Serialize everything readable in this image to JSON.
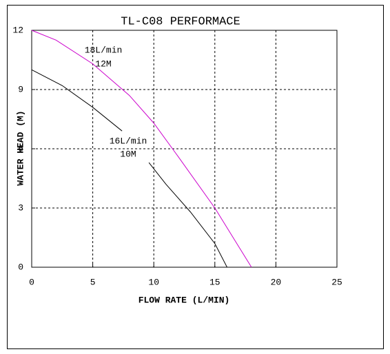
{
  "chart_data": {
    "type": "line",
    "title": "TL-C08 PERFORMACE",
    "x_label": "FLOW RATE (L/MIN)",
    "y_label": "WATER HEAD (M)",
    "xlim": [
      0,
      25
    ],
    "xticks": [
      0,
      5,
      10,
      15,
      20,
      25
    ],
    "ylim": [
      0,
      12
    ],
    "yticks": [
      0,
      3,
      6,
      9,
      12
    ],
    "grid": true,
    "series": [
      {
        "color": "#cc00cc",
        "x": [
          0,
          2,
          5,
          8,
          10,
          12,
          15,
          17,
          18
        ],
        "values": [
          12,
          11.5,
          10.3,
          8.7,
          7.3,
          5.6,
          3,
          1,
          0
        ]
      },
      {
        "color": "#000000",
        "x": [
          0,
          2.5,
          5,
          7.4,
          8.5,
          9.6,
          11,
          13,
          15,
          16
        ],
        "values": [
          10,
          9.2,
          8.1,
          6.9,
          null,
          5.3,
          4.2,
          2.8,
          1.2,
          0
        ]
      }
    ],
    "annotations": [
      "18L/min",
      "12M",
      "16L/min",
      "10M"
    ]
  }
}
